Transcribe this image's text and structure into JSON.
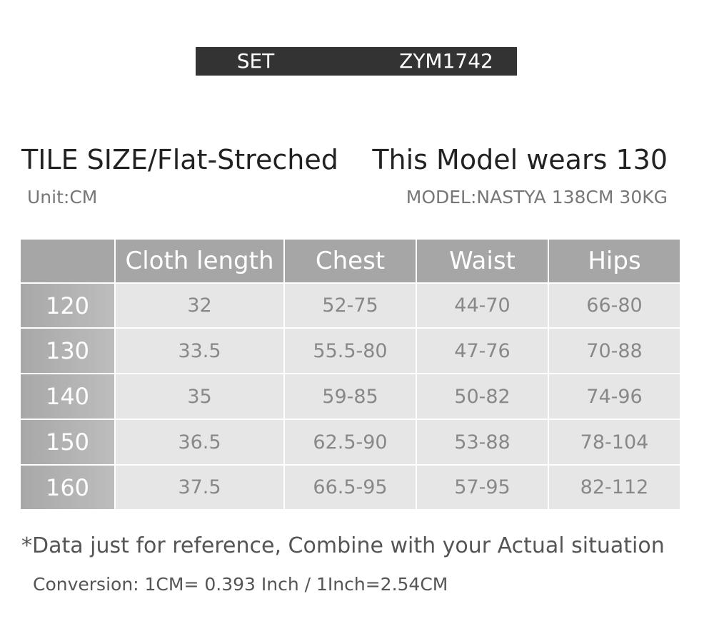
{
  "header": {
    "set": "SET",
    "code": "ZYM1742"
  },
  "title": "TILE SIZE/Flat-Streched",
  "unit": "Unit:CM",
  "model_title": "This Model wears 130",
  "model_info": "MODEL:NASTYA 138CM 30KG",
  "table": {
    "headers": [
      "Cloth length",
      "Chest",
      "Waist",
      "Hips"
    ],
    "rows": [
      [
        "120",
        "32",
        "52-75",
        "44-70",
        "66-80"
      ],
      [
        "130",
        "33.5",
        "55.5-80",
        "47-76",
        "70-88"
      ],
      [
        "140",
        "35",
        "59-85",
        "50-82",
        "74-96"
      ],
      [
        "150",
        "36.5",
        "62.5-90",
        "53-88",
        "78-104"
      ],
      [
        "160",
        "37.5",
        "66.5-95",
        "57-95",
        "82-112"
      ]
    ]
  },
  "note": "*Data just for reference, Combine with your Actual situation",
  "conversion": "Conversion: 1CM= 0.393 Inch / 1Inch=2.54CM"
}
